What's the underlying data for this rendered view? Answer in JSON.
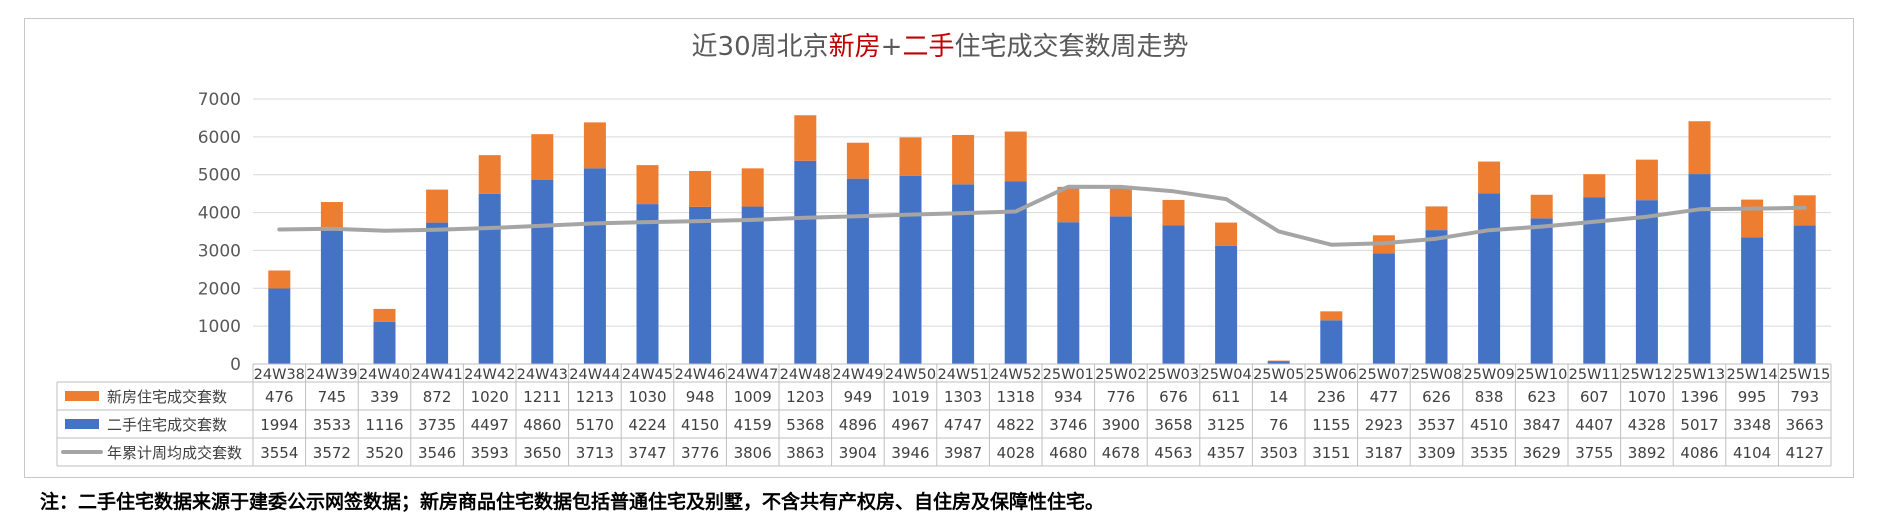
{
  "colors": {
    "new_house": "#ED7D31",
    "second_hand": "#4472C4",
    "average_line": "#A5A5A5",
    "title_text": "#595959",
    "title_highlight": "#C00000",
    "grid": "#D9D9D9"
  },
  "chart_data": {
    "type": "bar",
    "stacked": true,
    "title": "近30周北京新房+二手住宅成交套数周走势",
    "title_parts": [
      "近30周北京",
      "新房",
      "+",
      "二手",
      "住宅成交套数周走势"
    ],
    "categories": [
      "24W38",
      "24W39",
      "24W40",
      "24W41",
      "24W42",
      "24W43",
      "24W44",
      "24W45",
      "24W46",
      "24W47",
      "24W48",
      "24W49",
      "24W50",
      "24W51",
      "24W52",
      "25W01",
      "25W02",
      "25W03",
      "25W04",
      "25W05",
      "25W06",
      "25W07",
      "25W08",
      "25W09",
      "25W10",
      "25W11",
      "25W12",
      "25W13",
      "25W14",
      "25W15"
    ],
    "yticks": [
      "0",
      "1000",
      "2000",
      "3000",
      "4000",
      "5000",
      "6000",
      "7000"
    ],
    "ylim": [
      0,
      7000
    ],
    "grid": true,
    "legend": "data-table",
    "series": [
      {
        "name": "新房住宅成交套数",
        "kind": "bar",
        "values": [
          476,
          745,
          339,
          872,
          1020,
          1211,
          1213,
          1030,
          948,
          1009,
          1203,
          949,
          1019,
          1303,
          1318,
          934,
          776,
          676,
          611,
          14,
          236,
          477,
          626,
          838,
          623,
          607,
          1070,
          1396,
          995,
          793
        ]
      },
      {
        "name": "二手住宅成交套数",
        "kind": "bar",
        "values": [
          1994,
          3533,
          1116,
          3735,
          4497,
          4860,
          5170,
          4224,
          4150,
          4159,
          5368,
          4896,
          4967,
          4747,
          4822,
          3746,
          3900,
          3658,
          3125,
          76,
          1155,
          2923,
          3537,
          4510,
          3847,
          4407,
          4328,
          5017,
          3348,
          3663
        ]
      },
      {
        "name": "年累计周均成交套数",
        "kind": "line",
        "values": [
          3554,
          3572,
          3520,
          3546,
          3593,
          3650,
          3713,
          3747,
          3776,
          3806,
          3863,
          3904,
          3946,
          3987,
          4028,
          4680,
          4678,
          4563,
          4357,
          3503,
          3151,
          3187,
          3309,
          3535,
          3629,
          3755,
          3892,
          4086,
          4104,
          4127
        ]
      }
    ]
  },
  "footnote": "注：二手住宅数据来源于建委公示网签数据；新房商品住宅数据包括普通住宅及别墅，不含共有产权房、自住房及保障性住宅。"
}
